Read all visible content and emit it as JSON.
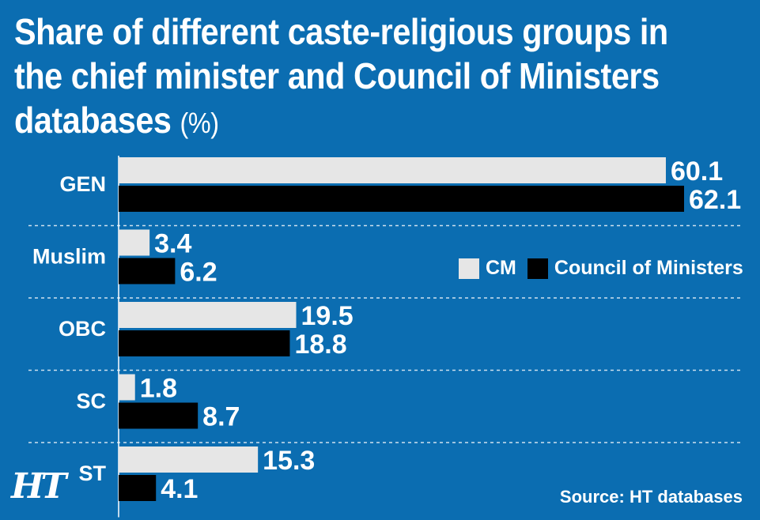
{
  "title": {
    "main": "Share of different caste-religious groups in the chief minister and Council of Ministers databases",
    "unit": "(%)"
  },
  "logo": "HT",
  "source": "Source: HT databases",
  "colors": {
    "background": "#0b6db1",
    "cm": "#e6e6e6",
    "council": "#000000"
  },
  "chart_data": {
    "type": "bar",
    "orientation": "horizontal",
    "title": "Share of different caste-religious groups in the chief minister and Council of Ministers databases (%)",
    "categories": [
      "GEN",
      "Muslim",
      "OBC",
      "SC",
      "ST"
    ],
    "series": [
      {
        "name": "CM",
        "values": [
          60.1,
          3.4,
          19.5,
          1.8,
          15.3
        ]
      },
      {
        "name": "Council of Ministers",
        "values": [
          62.1,
          6.2,
          18.8,
          8.7,
          4.1
        ]
      }
    ],
    "xlim": [
      0,
      62.1
    ],
    "legend": "right-middle",
    "grid": false
  }
}
